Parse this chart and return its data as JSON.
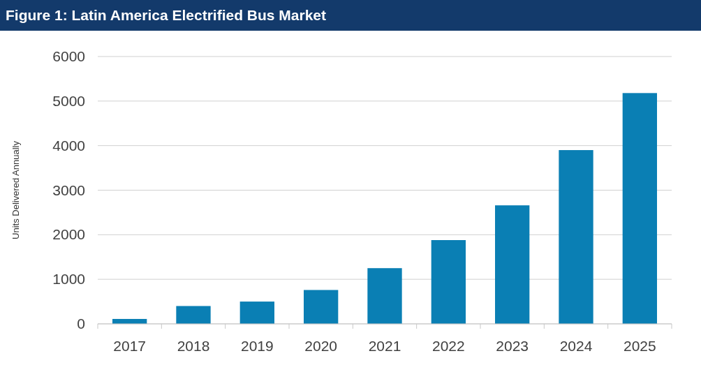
{
  "chart_data": {
    "type": "bar",
    "title": "Figure 1: Latin America Electrified Bus Market",
    "ylabel": "Units Delivered Annually",
    "categories": [
      "2017",
      "2018",
      "2019",
      "2020",
      "2021",
      "2022",
      "2023",
      "2024",
      "2025"
    ],
    "values": [
      110,
      400,
      500,
      760,
      1250,
      1880,
      2660,
      3900,
      5180
    ],
    "color": "#0a7fb4",
    "ylim": [
      0,
      6000
    ],
    "yticks": [
      0,
      1000,
      2000,
      3000,
      4000,
      5000,
      6000
    ],
    "grid": "y"
  }
}
